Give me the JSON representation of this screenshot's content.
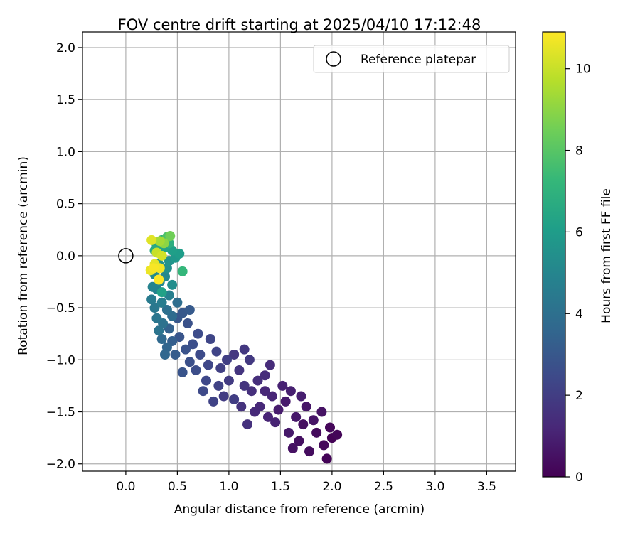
{
  "chart_data": {
    "type": "scatter",
    "title": "FOV centre drift starting at 2025/04/10 17:12:48",
    "xlabel": "Angular distance from reference (arcmin)",
    "ylabel": "Rotation from reference (arcmin)",
    "xlim": [
      -0.42,
      3.78
    ],
    "ylim": [
      -2.07,
      2.15
    ],
    "xticks": [
      0.0,
      0.5,
      1.0,
      1.5,
      2.0,
      2.5,
      3.0,
      3.5
    ],
    "xtick_labels": [
      "0.0",
      "0.5",
      "1.0",
      "1.5",
      "2.0",
      "2.5",
      "3.0",
      "3.5"
    ],
    "yticks": [
      2.0,
      1.5,
      1.0,
      0.5,
      0.0,
      -0.5,
      -1.0,
      -1.5,
      -2.0
    ],
    "ytick_labels": [
      "2.0",
      "1.5",
      "1.0",
      "0.5",
      "0.0",
      "−0.5",
      "−1.0",
      "−1.5",
      "−2.0"
    ],
    "grid": true,
    "legend": {
      "placement": "top-right",
      "entries": [
        {
          "label": "Reference platepar",
          "marker": "open-circle"
        }
      ]
    },
    "reference_point": {
      "x": 0.0,
      "y": 0.0
    },
    "colorbar": {
      "label": "Hours from first FF file",
      "colormap": "viridis",
      "range": [
        0,
        10.9
      ],
      "ticks": [
        0,
        2,
        4,
        6,
        8,
        10
      ],
      "tick_labels": [
        "0",
        "2",
        "4",
        "6",
        "8",
        "10"
      ]
    },
    "colormap_stops": [
      "#440154",
      "#482878",
      "#3e4989",
      "#31688e",
      "#26828e",
      "#1f9e89",
      "#35b779",
      "#6ece58",
      "#b5de2b",
      "#fde725"
    ],
    "series": [
      {
        "points": [
          [
            2.0,
            -1.75,
            0.05
          ],
          [
            1.95,
            -1.95,
            0.1
          ],
          [
            2.05,
            -1.72,
            0.15
          ],
          [
            1.98,
            -1.65,
            0.2
          ],
          [
            1.92,
            -1.82,
            0.25
          ],
          [
            1.85,
            -1.7,
            0.3
          ],
          [
            1.78,
            -1.88,
            0.35
          ],
          [
            1.72,
            -1.62,
            0.4
          ],
          [
            1.68,
            -1.78,
            0.45
          ],
          [
            1.62,
            -1.85,
            0.5
          ],
          [
            1.9,
            -1.5,
            0.55
          ],
          [
            1.82,
            -1.58,
            0.6
          ],
          [
            1.75,
            -1.45,
            0.65
          ],
          [
            1.65,
            -1.55,
            0.7
          ],
          [
            1.58,
            -1.7,
            0.75
          ],
          [
            1.55,
            -1.4,
            0.8
          ],
          [
            1.48,
            -1.48,
            0.85
          ],
          [
            1.7,
            -1.35,
            0.9
          ],
          [
            1.6,
            -1.3,
            0.95
          ],
          [
            1.52,
            -1.25,
            1.0
          ],
          [
            1.45,
            -1.6,
            1.05
          ],
          [
            1.38,
            -1.55,
            1.1
          ],
          [
            1.42,
            -1.35,
            1.15
          ],
          [
            1.35,
            -1.3,
            1.2
          ],
          [
            1.3,
            -1.45,
            1.25
          ],
          [
            1.25,
            -1.5,
            1.3
          ],
          [
            1.4,
            -1.05,
            1.35
          ],
          [
            1.35,
            -1.15,
            1.4
          ],
          [
            1.28,
            -1.2,
            1.45
          ],
          [
            1.22,
            -1.3,
            1.5
          ],
          [
            1.18,
            -1.62,
            1.55
          ],
          [
            1.12,
            -1.45,
            1.6
          ],
          [
            1.15,
            -1.25,
            1.65
          ],
          [
            1.1,
            -1.1,
            1.7
          ],
          [
            1.05,
            -0.95,
            1.75
          ],
          [
            1.15,
            -0.9,
            1.8
          ],
          [
            1.2,
            -1.0,
            1.85
          ],
          [
            1.0,
            -1.2,
            1.9
          ],
          [
            0.95,
            -1.35,
            1.95
          ],
          [
            1.05,
            -1.38,
            2.0
          ],
          [
            0.98,
            -1.0,
            2.05
          ],
          [
            0.92,
            -1.08,
            2.1
          ],
          [
            0.9,
            -1.25,
            2.15
          ],
          [
            0.85,
            -1.4,
            2.2
          ],
          [
            0.88,
            -0.92,
            2.25
          ],
          [
            0.82,
            -0.8,
            2.3
          ],
          [
            0.8,
            -1.05,
            2.35
          ],
          [
            0.78,
            -1.2,
            2.4
          ],
          [
            0.75,
            -1.3,
            2.45
          ],
          [
            0.72,
            -0.95,
            2.5
          ],
          [
            0.7,
            -0.75,
            2.55
          ],
          [
            0.68,
            -1.1,
            2.6
          ],
          [
            0.65,
            -0.85,
            2.65
          ],
          [
            0.62,
            -1.02,
            2.7
          ],
          [
            0.6,
            -0.65,
            2.75
          ],
          [
            0.58,
            -0.9,
            2.8
          ],
          [
            0.55,
            -1.12,
            2.85
          ],
          [
            0.52,
            -0.78,
            2.9
          ],
          [
            0.5,
            -0.6,
            2.95
          ],
          [
            0.55,
            -0.55,
            3.0
          ],
          [
            0.62,
            -0.52,
            3.1
          ],
          [
            0.48,
            -0.95,
            3.2
          ],
          [
            0.45,
            -0.82,
            3.3
          ],
          [
            0.42,
            -0.7,
            3.4
          ],
          [
            0.4,
            -0.88,
            3.5
          ],
          [
            0.38,
            -0.95,
            3.6
          ],
          [
            0.35,
            -0.8,
            3.7
          ],
          [
            0.45,
            -0.58,
            3.8
          ],
          [
            0.5,
            -0.45,
            3.9
          ],
          [
            0.4,
            -0.52,
            4.0
          ],
          [
            0.36,
            -0.65,
            4.1
          ],
          [
            0.32,
            -0.72,
            4.2
          ],
          [
            0.3,
            -0.6,
            4.3
          ],
          [
            0.28,
            -0.5,
            4.4
          ],
          [
            0.25,
            -0.42,
            4.5
          ],
          [
            0.35,
            -0.45,
            4.6
          ],
          [
            0.42,
            -0.38,
            4.7
          ],
          [
            0.3,
            -0.32,
            4.8
          ],
          [
            0.26,
            -0.3,
            4.9
          ],
          [
            0.33,
            -0.25,
            5.0
          ],
          [
            0.38,
            -0.2,
            5.1
          ],
          [
            0.28,
            -0.18,
            5.2
          ],
          [
            0.45,
            -0.28,
            5.3
          ],
          [
            0.4,
            -0.12,
            5.4
          ],
          [
            0.32,
            -0.08,
            5.5
          ],
          [
            0.42,
            -0.05,
            5.6
          ],
          [
            0.48,
            -0.02,
            5.8
          ],
          [
            0.52,
            0.02,
            6.0
          ],
          [
            0.45,
            0.05,
            6.1
          ],
          [
            0.35,
            -0.35,
            6.2
          ],
          [
            0.38,
            0.08,
            6.3
          ],
          [
            0.3,
            0.1,
            6.5
          ],
          [
            0.28,
            0.05,
            6.6
          ],
          [
            0.42,
            0.12,
            6.8
          ],
          [
            0.35,
            0.15,
            7.0
          ],
          [
            0.55,
            -0.15,
            7.2
          ],
          [
            0.4,
            0.18,
            7.8
          ],
          [
            0.43,
            0.19,
            8.5
          ],
          [
            0.37,
            0.12,
            9.0
          ],
          [
            0.33,
            0.14,
            9.4
          ],
          [
            0.3,
            0.03,
            10.0
          ],
          [
            0.35,
            0.0,
            10.2
          ],
          [
            0.25,
            0.15,
            10.4
          ],
          [
            0.28,
            -0.08,
            10.5
          ],
          [
            0.24,
            -0.14,
            10.6
          ],
          [
            0.33,
            -0.12,
            10.7
          ],
          [
            0.27,
            -0.12,
            10.8
          ],
          [
            0.32,
            -0.23,
            10.9
          ]
        ]
      }
    ]
  }
}
